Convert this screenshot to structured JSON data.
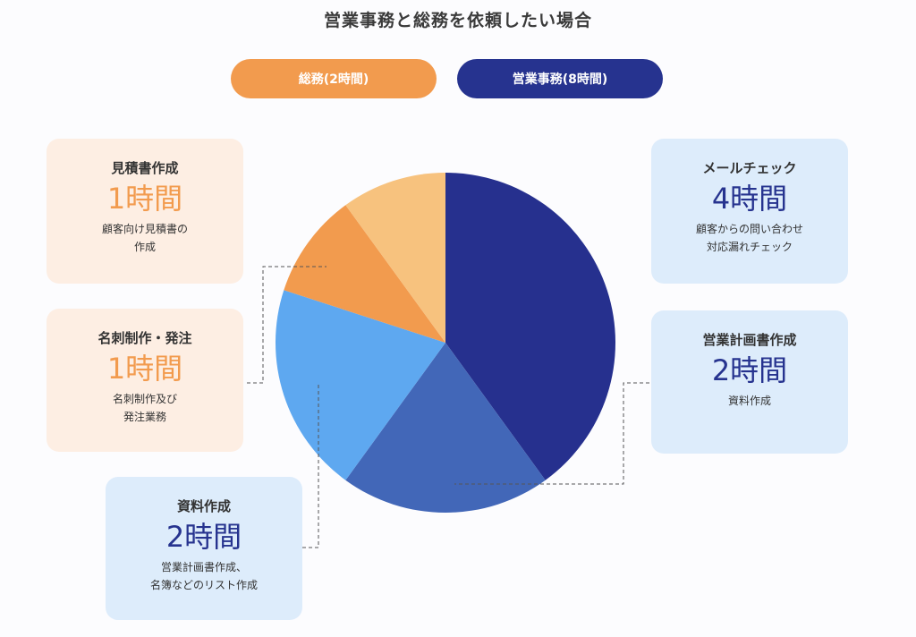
{
  "title": "営業事務と総務を依頼したい場合",
  "legend": {
    "general_affairs": "総務(2時間)",
    "sales_admin": "営業事務(8時間)"
  },
  "cards": {
    "estimate": {
      "title": "見積書作成",
      "hours": "1時間",
      "desc": "顧客向け見積書の\n作成"
    },
    "business_card": {
      "title": "名刺制作・発注",
      "hours": "1時間",
      "desc": "名刺制作及び\n発注業務"
    },
    "documents": {
      "title": "資料作成",
      "hours": "2時間",
      "desc": "営業計画書作成、\n名簿などのリスト作成"
    },
    "mail_check": {
      "title": "メールチェック",
      "hours": "4時間",
      "desc": "顧客からの問い合わせ\n対応漏れチェック"
    },
    "sales_plan": {
      "title": "営業計画書作成",
      "hours": "2時間",
      "desc": "資料作成"
    }
  },
  "colors": {
    "ga_accent": "#f29b4e",
    "sales_accent": "#26338f",
    "ga_card_bg": "#fdeee3",
    "sales_card_bg": "#ddecfb"
  },
  "chart_data": {
    "type": "pie",
    "unit": "時間",
    "slices": [
      {
        "label": "メールチェック",
        "value": 4,
        "color": "#26308e"
      },
      {
        "label": "営業計画書作成",
        "value": 2,
        "color": "#4267b8"
      },
      {
        "label": "資料作成",
        "value": 2,
        "color": "#5ea8f0"
      },
      {
        "label": "名刺制作・発注",
        "value": 1,
        "color": "#f29b4e"
      },
      {
        "label": "見積書作成",
        "value": 1,
        "color": "#f7c27e"
      }
    ]
  }
}
